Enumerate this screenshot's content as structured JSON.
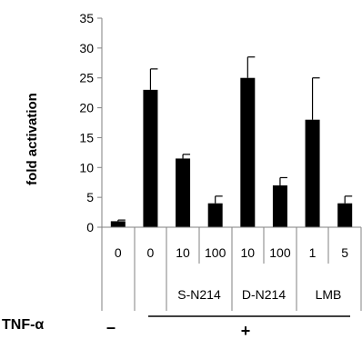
{
  "chart_data": {
    "type": "bar",
    "ylabel": "fold activation",
    "ylim": [
      0,
      35
    ],
    "yticks": [
      0,
      5,
      10,
      15,
      20,
      25,
      30,
      35
    ],
    "categories": [
      "0",
      "0",
      "10",
      "100",
      "10",
      "100",
      "1",
      "5"
    ],
    "values": [
      1,
      23,
      11.5,
      4,
      25,
      7,
      18,
      4
    ],
    "errors": [
      0.2,
      3.5,
      0.7,
      1.2,
      3.5,
      1.3,
      7,
      1.2
    ],
    "groups": [
      {
        "label": "S-N214",
        "categories": [
          "10",
          "100"
        ]
      },
      {
        "label": "D-N214",
        "categories": [
          "10",
          "100"
        ]
      },
      {
        "label": "LMB",
        "categories": [
          "1",
          "5"
        ]
      }
    ],
    "treatment": {
      "label": "TNF-α",
      "minus": "–",
      "plus": "+"
    },
    "bar_color": "#000000",
    "grid": false
  }
}
